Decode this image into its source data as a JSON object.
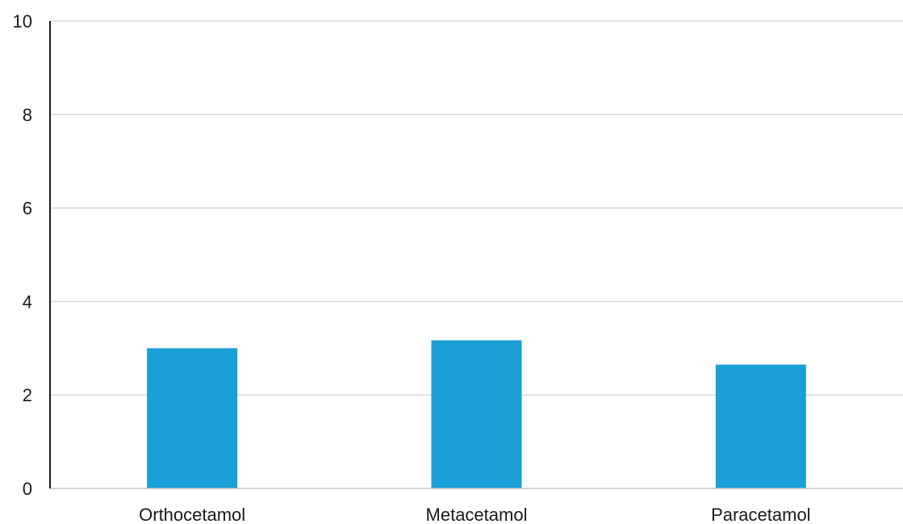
{
  "chart_data": {
    "type": "bar",
    "title": "",
    "xlabel": "",
    "ylabel": "",
    "categories": [
      "Orthocetamol",
      "Metacetamol",
      "Paracetamol"
    ],
    "values": [
      3.0,
      3.17,
      2.65
    ],
    "ylim": [
      0,
      10
    ],
    "yticks": [
      0,
      2,
      4,
      6,
      8,
      10
    ],
    "grid": true,
    "legend": "none",
    "colors": {
      "bar": "#1a9fd6",
      "grid": "#d9d9d9",
      "axis": "#1a1a1a"
    }
  }
}
